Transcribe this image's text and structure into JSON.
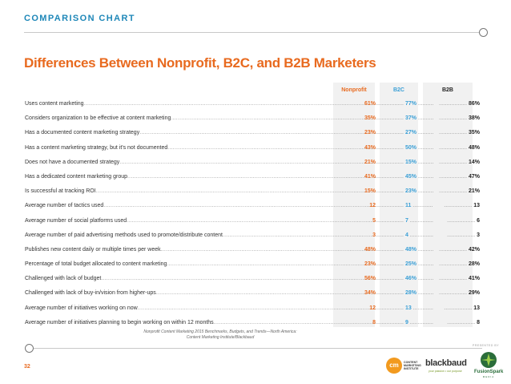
{
  "header": {
    "label": "COMPARISON CHART"
  },
  "title": "Differences Between Nonprofit, B2C, and B2B Marketers",
  "columns": {
    "nonprofit": "Nonprofit",
    "b2c": "B2C",
    "b2b": "B2B"
  },
  "rows": [
    {
      "label": "Uses content marketing",
      "nonprofit": "61%",
      "b2c": "77%",
      "b2b": "86%"
    },
    {
      "label": "Considers organization to be effective at content marketing",
      "nonprofit": "35%",
      "b2c": "37%",
      "b2b": "38%"
    },
    {
      "label": "Has a documented content marketing strategy",
      "nonprofit": "23%",
      "b2c": "27%",
      "b2b": "35%"
    },
    {
      "label": "Has a content marketing strategy, but it's not documented",
      "nonprofit": "43%",
      "b2c": "50%",
      "b2b": "48%"
    },
    {
      "label": "Does not have a documented strategy",
      "nonprofit": "21%",
      "b2c": "15%",
      "b2b": "14%"
    },
    {
      "label": "Has a dedicated content marketing group",
      "nonprofit": "41%",
      "b2c": "45%",
      "b2b": "47%"
    },
    {
      "label": "Is successful at tracking ROI",
      "nonprofit": "15%",
      "b2c": "23%",
      "b2b": "21%"
    },
    {
      "label": "Average number of tactics used",
      "nonprofit": "12",
      "b2c": "11",
      "b2b": "13"
    },
    {
      "label": "Average number of social platforms used",
      "nonprofit": "5",
      "b2c": "7",
      "b2b": "6"
    },
    {
      "label": "Average number of paid advertising methods used to promote/distribute content",
      "nonprofit": "3",
      "b2c": "4",
      "b2b": "3"
    },
    {
      "label": "Publishes new content daily or multiple times per week",
      "nonprofit": "48%",
      "b2c": "48%",
      "b2b": "42%"
    },
    {
      "label": "Percentage of total budget allocated to content marketing",
      "nonprofit": "23%",
      "b2c": "25%",
      "b2b": "28%"
    },
    {
      "label": "Challenged with lack of budget",
      "nonprofit": "56%",
      "b2c": "46%",
      "b2b": "41%"
    },
    {
      "label": "Challenged with lack of buy-in/vision from higher-ups",
      "nonprofit": "34%",
      "b2c": "28%",
      "b2b": "29%"
    },
    {
      "label": "Average number of initiatives working on now",
      "nonprofit": "12",
      "b2c": "13",
      "b2b": "13"
    },
    {
      "label": "Average number of initiatives planning to begin working on within 12 months",
      "nonprofit": "8",
      "b2c": "9",
      "b2b": "8"
    }
  ],
  "source": {
    "line1": "Nonprofit Content Marketing 2015 Benchmarks, Budgets, and Trends—North America:",
    "line2": "Content Marketing Institute/Blackbaud"
  },
  "footer": {
    "page_number": "32",
    "presented_by": "PRESENTED BY",
    "cmi_badge": "cm",
    "cmi_text": "CONTENT MARKETING INSTITUTE",
    "blackbaud_name": "blackbaud",
    "blackbaud_tagline": "your passion • our purpose",
    "fusionspark_name": "FusionSpark",
    "fusionspark_sub": "MEDIA"
  },
  "colors": {
    "accent_orange": "#e86a1f",
    "accent_blue": "#1e87b8",
    "b2c_blue": "#3a9fd6"
  }
}
